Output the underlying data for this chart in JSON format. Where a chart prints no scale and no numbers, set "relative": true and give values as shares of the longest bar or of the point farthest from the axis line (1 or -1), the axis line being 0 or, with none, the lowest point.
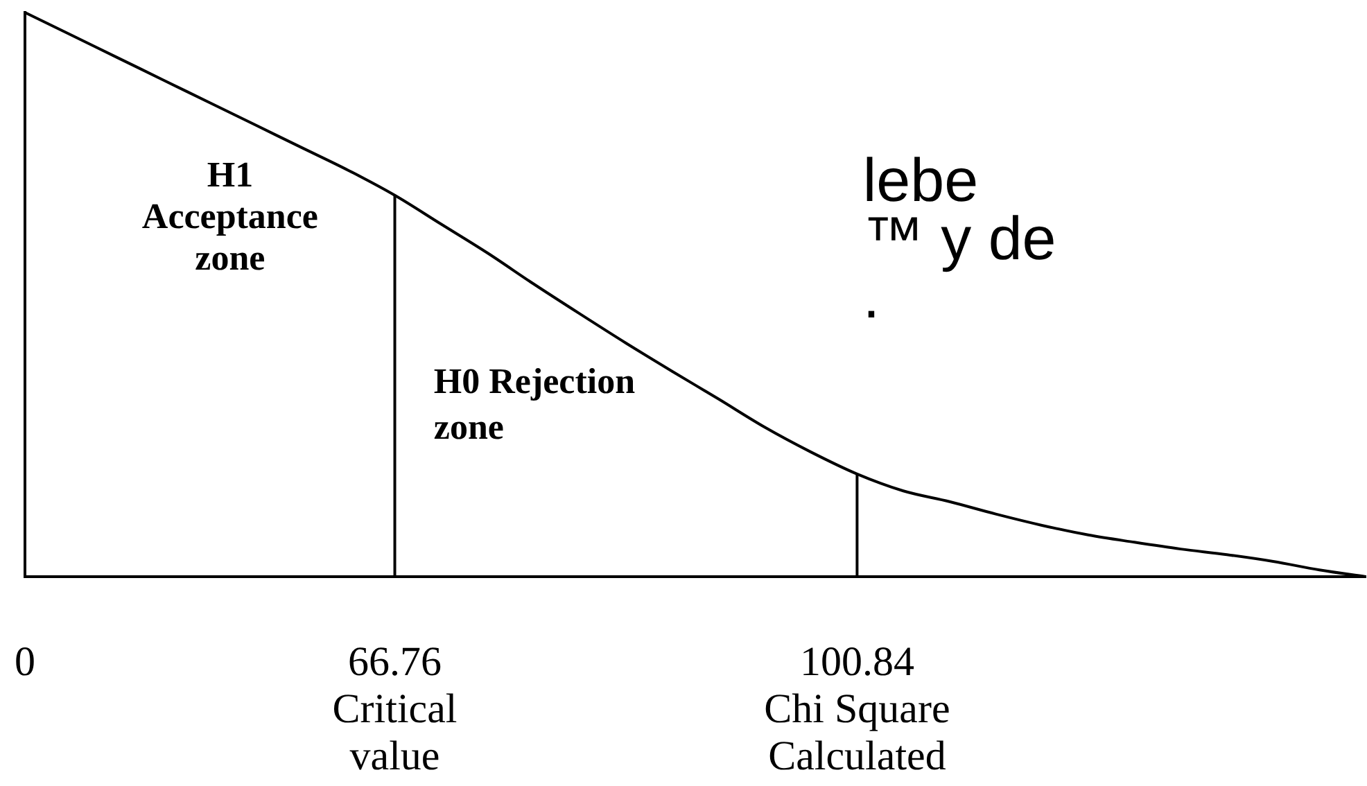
{
  "chart_data": {
    "type": "line",
    "relative": true,
    "categories": [
      "0",
      null,
      null,
      null,
      null,
      null,
      null,
      null,
      "66.76\nCritical\nvalue",
      null,
      null,
      null,
      null,
      null,
      null,
      null,
      null,
      null,
      "100.84\nChi Square\nCalculated",
      null,
      null,
      null,
      null,
      null,
      null,
      null,
      null,
      null,
      null,
      null
    ],
    "series": [
      {
        "color": "#000000",
        "values": [
          1.0,
          0.96,
          0.92,
          0.88,
          0.84,
          0.8,
          0.76,
          0.72,
          0.676,
          0.625,
          0.574,
          0.519,
          0.466,
          0.414,
          0.364,
          0.315,
          0.265,
          0.221,
          0.182,
          0.152,
          0.133,
          0.111,
          0.091,
          0.074,
          0.061,
          0.049,
          0.039,
          0.027,
          0.012,
          0
        ]
      }
    ],
    "marker": "none",
    "grid": false,
    "legend": false,
    "ref_lines": [
      {
        "axis": "x",
        "value": "66.76\nCritical\nvalue"
      },
      {
        "axis": "x",
        "value": "100.84\nChi Square\nCalculated"
      }
    ],
    "annotations": [
      "H1\nAcceptance\nzone",
      "H0 Rejection\nzone",
      "lebe\n™ y de\n."
    ]
  }
}
